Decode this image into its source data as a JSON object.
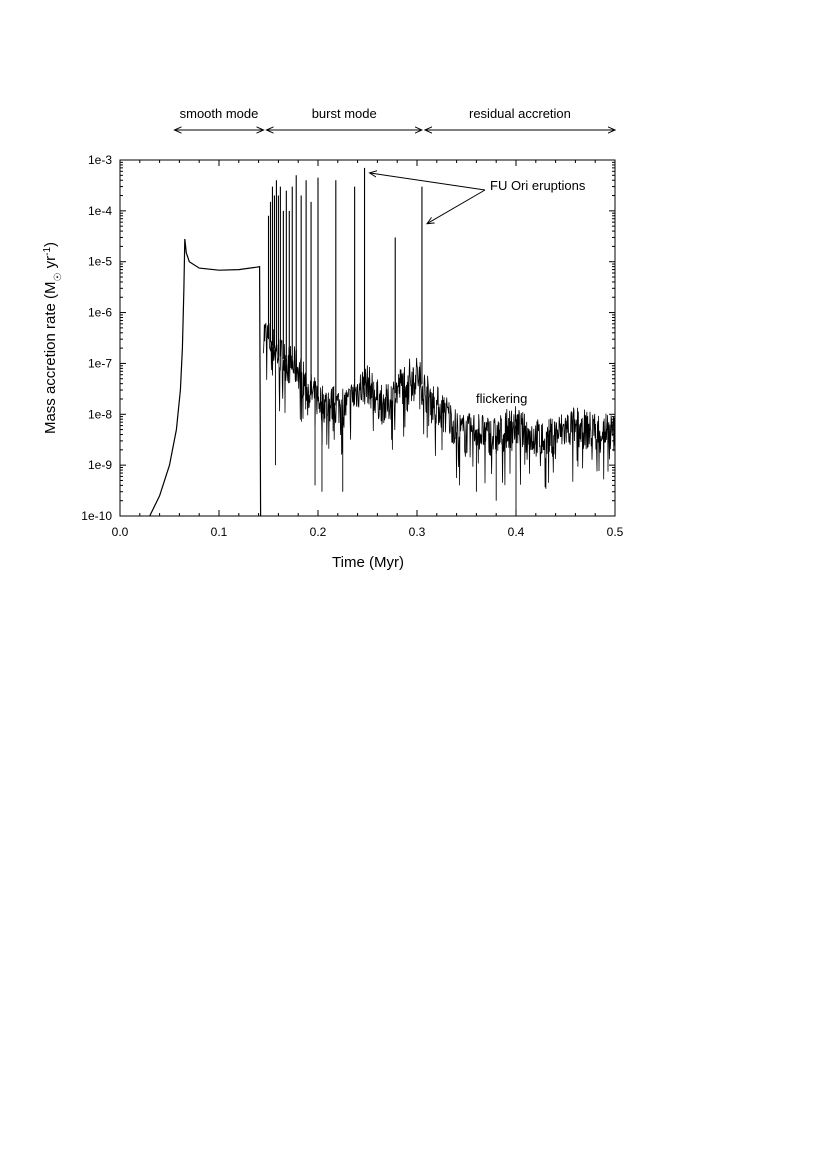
{
  "chart_data": {
    "type": "line",
    "xlabel": "Time (Myr)",
    "ylabel_parts": {
      "main": "Mass accretion rate (M",
      "sub": "☉",
      "mid": " yr",
      "sup": "-1",
      "end": ")"
    },
    "xlim": [
      0.0,
      0.5
    ],
    "ylim": [
      1e-10,
      0.001
    ],
    "y_scale": "log",
    "x_ticks": [
      "0.0",
      "0.1",
      "0.2",
      "0.3",
      "0.4",
      "0.5"
    ],
    "y_ticks": [
      "1e-10",
      "1e-9",
      "1e-8",
      "1e-7",
      "1e-6",
      "1e-5",
      "1e-4",
      "1e-3"
    ],
    "grid": false,
    "phases": [
      {
        "label": "smooth mode",
        "x_start": 0.055,
        "x_end": 0.145
      },
      {
        "label": "burst mode",
        "x_start": 0.148,
        "x_end": 0.305
      },
      {
        "label": "residual accretion",
        "x_start": 0.308,
        "x_end": 0.5
      }
    ],
    "annotations": {
      "fu_ori": {
        "label": "FU Ori eruptions",
        "targets": [
          [
            0.247,
            0.0007
          ],
          [
            0.305,
            7e-05
          ]
        ]
      },
      "flickering": {
        "label": "flickering",
        "x": 0.39,
        "y": 2e-08
      }
    },
    "series": [
      {
        "smooth_curve": [
          [
            0.03,
            1e-10
          ],
          [
            0.04,
            2.5e-10
          ],
          [
            0.05,
            1e-09
          ],
          [
            0.057,
            5e-09
          ],
          [
            0.061,
            3e-08
          ],
          [
            0.063,
            2e-07
          ],
          [
            0.0645,
            3e-06
          ],
          [
            0.0655,
            2.8e-05
          ],
          [
            0.067,
            1.5e-05
          ],
          [
            0.07,
            1e-05
          ],
          [
            0.08,
            7.5e-06
          ],
          [
            0.1,
            6.8e-06
          ],
          [
            0.12,
            7e-06
          ],
          [
            0.138,
            7.8e-06
          ],
          [
            0.141,
            8e-06
          ],
          [
            0.142,
            1e-10
          ]
        ],
        "bursts": [
          {
            "x": 0.15,
            "peak": 8e-05
          },
          {
            "x": 0.152,
            "peak": 0.00015
          },
          {
            "x": 0.154,
            "peak": 0.0003
          },
          {
            "x": 0.156,
            "peak": 0.0002
          },
          {
            "x": 0.158,
            "peak": 0.0004
          },
          {
            "x": 0.16,
            "peak": 0.0002
          },
          {
            "x": 0.162,
            "peak": 0.0003
          },
          {
            "x": 0.165,
            "peak": 0.0001
          },
          {
            "x": 0.168,
            "peak": 0.00025
          },
          {
            "x": 0.171,
            "peak": 0.0001
          },
          {
            "x": 0.174,
            "peak": 0.0003
          },
          {
            "x": 0.178,
            "peak": 0.0005
          },
          {
            "x": 0.183,
            "peak": 0.0002
          },
          {
            "x": 0.188,
            "peak": 0.0004
          },
          {
            "x": 0.193,
            "peak": 0.00015
          },
          {
            "x": 0.2,
            "peak": 0.00045
          },
          {
            "x": 0.218,
            "peak": 0.0004
          },
          {
            "x": 0.237,
            "peak": 0.0003
          },
          {
            "x": 0.247,
            "peak": 0.0007
          },
          {
            "x": 0.278,
            "peak": 3e-05
          },
          {
            "x": 0.305,
            "peak": 0.0003
          }
        ],
        "baseline": [
          [
            0.145,
            4e-07
          ],
          [
            0.15,
            3e-07
          ],
          [
            0.16,
            1.5e-07
          ],
          [
            0.17,
            1e-07
          ],
          [
            0.18,
            8e-08
          ],
          [
            0.19,
            3e-08
          ],
          [
            0.2,
            2e-08
          ],
          [
            0.21,
            1.5e-08
          ],
          [
            0.22,
            1.5e-08
          ],
          [
            0.23,
            1.5e-08
          ],
          [
            0.24,
            3e-08
          ],
          [
            0.25,
            4e-08
          ],
          [
            0.26,
            2e-08
          ],
          [
            0.27,
            1.5e-08
          ],
          [
            0.28,
            3e-08
          ],
          [
            0.29,
            5e-08
          ],
          [
            0.3,
            6e-08
          ],
          [
            0.31,
            2.5e-08
          ],
          [
            0.32,
            1.5e-08
          ],
          [
            0.33,
            1e-08
          ],
          [
            0.34,
            5e-09
          ],
          [
            0.35,
            4e-09
          ],
          [
            0.36,
            5e-09
          ],
          [
            0.37,
            4e-09
          ],
          [
            0.38,
            3.5e-09
          ],
          [
            0.39,
            5e-09
          ],
          [
            0.4,
            6e-09
          ],
          [
            0.41,
            4e-09
          ],
          [
            0.42,
            3.5e-09
          ],
          [
            0.43,
            3e-09
          ],
          [
            0.44,
            4e-09
          ],
          [
            0.45,
            5e-09
          ],
          [
            0.46,
            6e-09
          ],
          [
            0.47,
            5e-09
          ],
          [
            0.48,
            4.5e-09
          ],
          [
            0.49,
            5e-09
          ],
          [
            0.5,
            4e-09
          ]
        ],
        "deep_drops": [
          [
            0.157,
            1e-09
          ],
          [
            0.197,
            4e-10
          ],
          [
            0.204,
            3e-10
          ],
          [
            0.225,
            3e-10
          ],
          [
            0.36,
            3e-10
          ],
          [
            0.38,
            2e-10
          ],
          [
            0.4,
            1e-10
          ]
        ]
      }
    ]
  }
}
